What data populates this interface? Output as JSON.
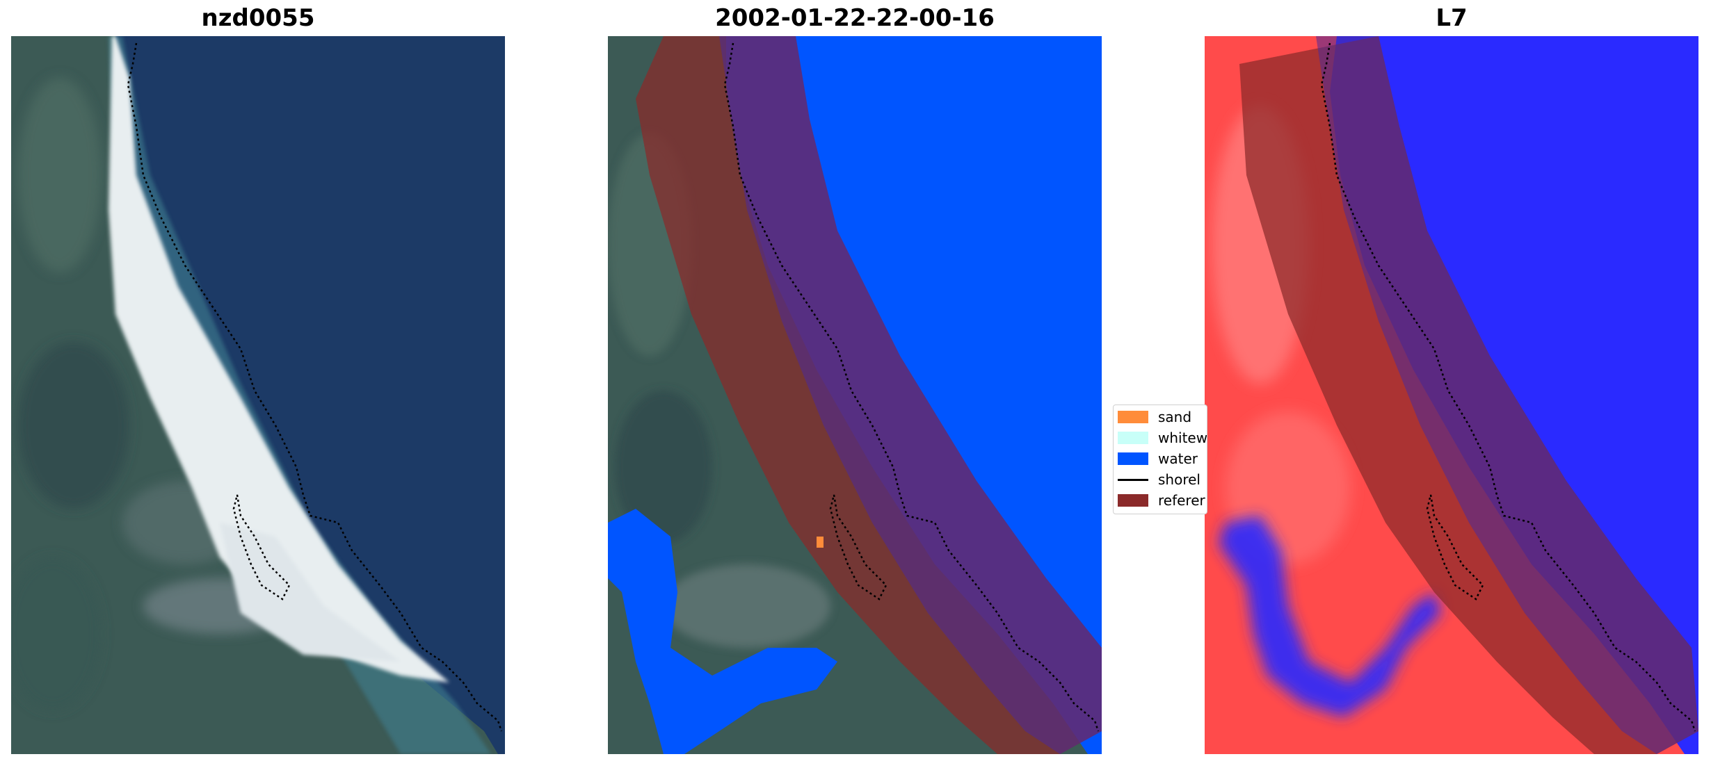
{
  "panels": {
    "left": {
      "title": "nzd0055"
    },
    "middle": {
      "title": "2002-01-22-22-00-16"
    },
    "right": {
      "title": "L7"
    }
  },
  "legend": {
    "items": [
      {
        "label": "sand",
        "color": "#ff8c3a"
      },
      {
        "label": "whitew",
        "color": "#c8fff8"
      },
      {
        "label": "water",
        "color": "#0055ff"
      },
      {
        "label": "shorel",
        "color": "#000000"
      },
      {
        "label": "referer",
        "color": "#8b2a2a"
      }
    ]
  }
}
